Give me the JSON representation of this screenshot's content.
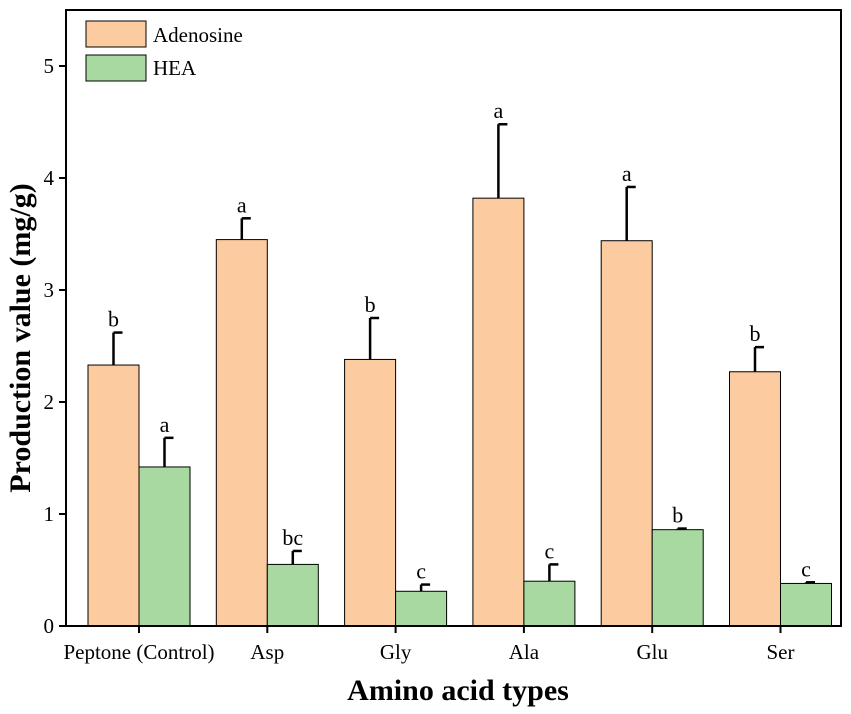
{
  "chart_data": {
    "type": "bar",
    "title": "",
    "xlabel": "Amino acid types",
    "ylabel": "Production value (mg/g)",
    "ylim": [
      0,
      5.5
    ],
    "yticks": [
      0,
      1,
      2,
      3,
      4,
      5
    ],
    "ytick_labels": [
      "0",
      "1",
      "2",
      "3",
      "4",
      "5"
    ],
    "categories": [
      "Peptone (Control)",
      "Asp",
      "Gly",
      "Ala",
      "Glu",
      "Ser"
    ],
    "legend_position": "top-left",
    "series": [
      {
        "name": "Adenosine",
        "color": "#FCCB9F",
        "values": [
          2.33,
          3.45,
          2.38,
          3.82,
          3.44,
          2.27
        ],
        "errors": [
          0.29,
          0.19,
          0.37,
          0.66,
          0.48,
          0.22
        ],
        "significance": [
          "b",
          "a",
          "b",
          "a",
          "a",
          "b"
        ]
      },
      {
        "name": "HEA",
        "color": "#A8D9A1",
        "values": [
          1.42,
          0.55,
          0.31,
          0.4,
          0.86,
          0.38
        ],
        "errors": [
          0.26,
          0.12,
          0.06,
          0.15,
          0.01,
          0.01
        ],
        "significance": [
          "a",
          "bc",
          "c",
          "c",
          "b",
          "c"
        ]
      }
    ]
  }
}
